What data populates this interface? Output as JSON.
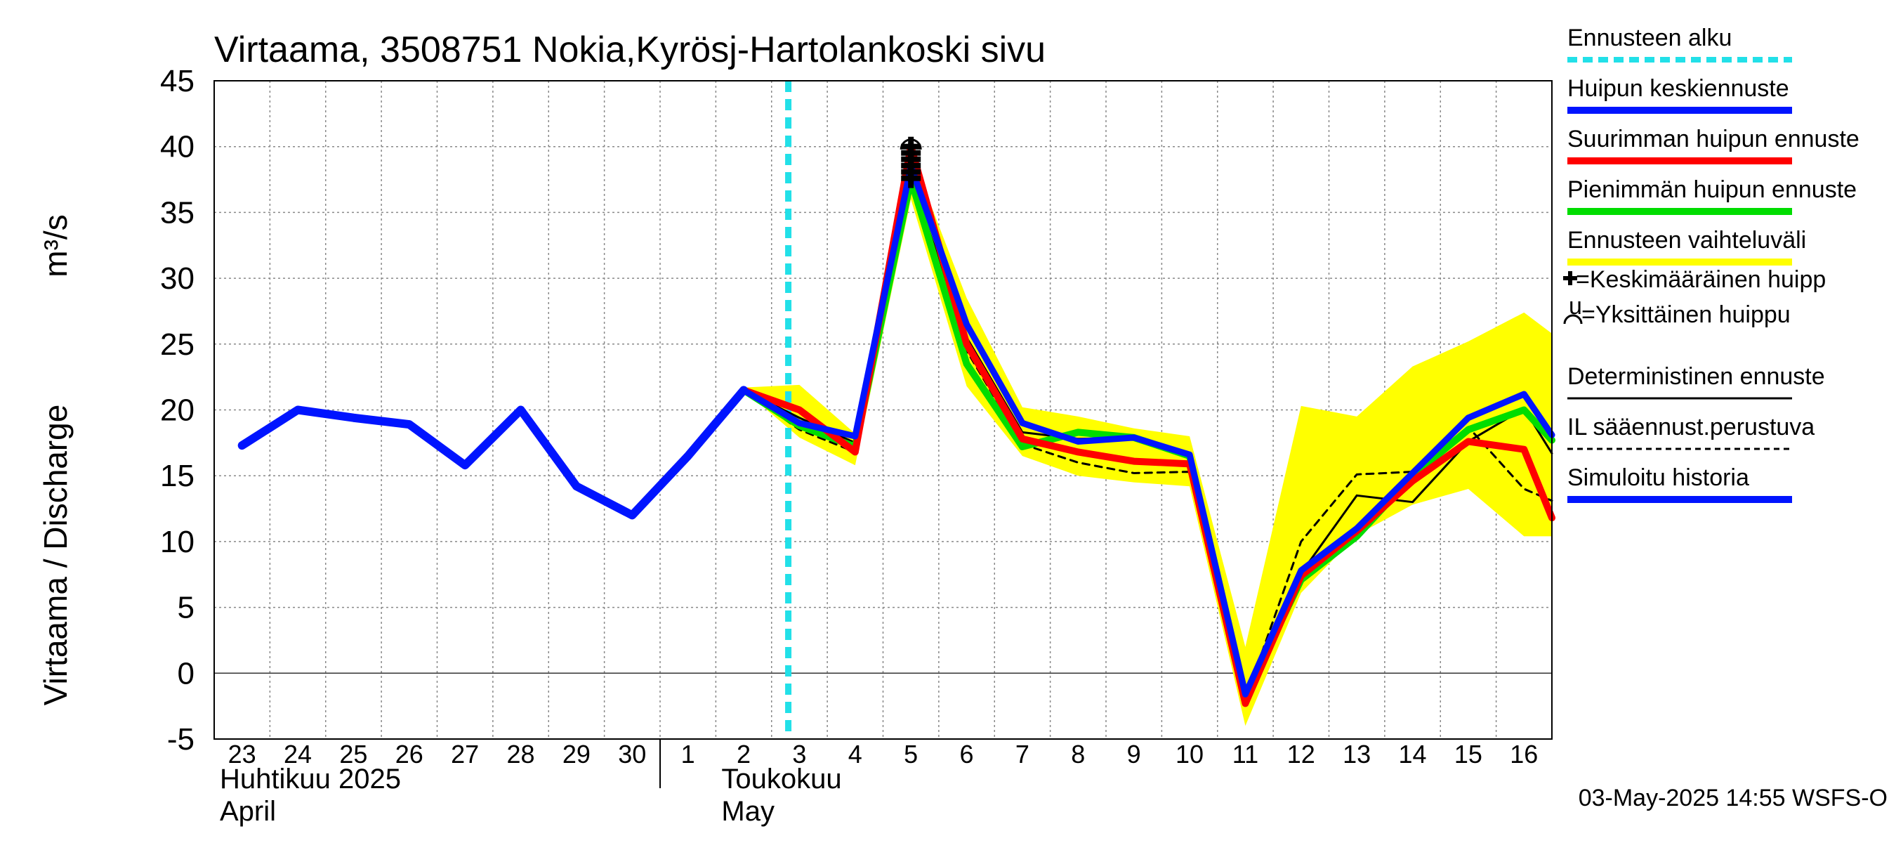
{
  "chart_data": {
    "type": "line",
    "title": "Virtaama, 3508751 Nokia,Kyrösj-Hartolankoski sivu",
    "ylabel": "Virtaama / Discharge",
    "yunit": "m³/s",
    "ylim": [
      -5,
      45
    ],
    "yticks": [
      45,
      40,
      35,
      30,
      25,
      20,
      15,
      10,
      5,
      0,
      -5
    ],
    "xlim": [
      -0.5,
      23.5
    ],
    "grid": true,
    "day_labels": [
      "23",
      "24",
      "25",
      "26",
      "27",
      "28",
      "29",
      "30",
      "1",
      "2",
      "3",
      "4",
      "5",
      "6",
      "7",
      "8",
      "9",
      "10",
      "11",
      "12",
      "13",
      "14",
      "15",
      "16"
    ],
    "month_labels": [
      {
        "fi": "Huhtikuu  2025",
        "en": "April",
        "at_day": 0
      },
      {
        "fi": "Toukokuu",
        "en": "May",
        "at_day": 9
      }
    ],
    "month_separator_day": 7.5,
    "forecast_start_day": 9.8,
    "series": {
      "simulated_history": {
        "x": [
          0,
          1,
          2,
          3,
          4,
          5,
          6,
          7,
          8,
          9
        ],
        "y": [
          17.3,
          20.0,
          19.4,
          18.9,
          15.8,
          20.0,
          14.2,
          12.0,
          16.5,
          21.5
        ]
      },
      "range_upper": {
        "x": [
          9,
          10,
          11,
          12,
          13,
          14,
          15,
          16,
          17,
          18,
          19,
          20,
          21,
          22,
          23,
          23.5
        ],
        "y": [
          21.7,
          21.9,
          18.2,
          39.5,
          28.5,
          20.2,
          19.5,
          18.6,
          18.0,
          2.0,
          20.3,
          19.5,
          23.3,
          25.2,
          27.4,
          25.8
        ]
      },
      "range_lower": {
        "x": [
          9,
          10,
          11,
          12,
          13,
          14,
          15,
          16,
          17,
          18,
          19,
          20,
          21,
          22,
          23,
          23.5
        ],
        "y": [
          21.5,
          17.9,
          15.8,
          36.0,
          21.8,
          16.5,
          15.0,
          14.5,
          14.2,
          -4.0,
          6.1,
          10.5,
          12.8,
          14.0,
          10.4,
          10.4
        ]
      },
      "deterministic": {
        "x": [
          9,
          10,
          11,
          12,
          13,
          14,
          15,
          16,
          17,
          18,
          19,
          20,
          21,
          22,
          23,
          23.5
        ],
        "y": [
          21.5,
          19.4,
          17.5,
          37.5,
          25.5,
          18.3,
          17.8,
          17.9,
          16.6,
          -1.8,
          7.6,
          13.5,
          13.0,
          17.6,
          20.1,
          16.7
        ]
      },
      "il_weather": {
        "x": [
          9,
          10,
          11,
          12,
          13,
          14,
          15,
          16,
          17,
          18,
          19,
          20,
          21,
          22,
          23,
          23.5
        ],
        "y": [
          21.5,
          18.5,
          16.8,
          38.0,
          24.5,
          17.4,
          16.0,
          15.2,
          15.3,
          -2.0,
          10.0,
          15.1,
          15.3,
          18.7,
          14.0,
          13.1
        ]
      },
      "peak_max": {
        "x": [
          9,
          10,
          11,
          12,
          13,
          14,
          15,
          16,
          17,
          18,
          19,
          20,
          21,
          22,
          23,
          23.5
        ],
        "y": [
          21.5,
          20.0,
          16.8,
          40.0,
          25.0,
          17.8,
          16.8,
          16.1,
          15.9,
          -2.3,
          7.4,
          10.8,
          14.6,
          17.6,
          17.0,
          11.8
        ]
      },
      "peak_min": {
        "x": [
          9,
          10,
          11,
          12,
          13,
          14,
          15,
          16,
          17,
          18,
          19,
          20,
          21,
          22,
          23,
          23.5
        ],
        "y": [
          21.5,
          18.8,
          17.2,
          37.5,
          23.5,
          17.2,
          18.3,
          17.9,
          16.5,
          -1.7,
          7.1,
          10.4,
          15.0,
          18.5,
          20.0,
          17.7
        ]
      },
      "peak_mean": {
        "x": [
          9,
          10,
          11,
          12,
          13,
          14,
          15,
          16,
          17,
          18,
          19,
          20,
          21,
          22,
          23,
          23.5
        ],
        "y": [
          21.5,
          19.0,
          18.0,
          38.5,
          26.5,
          19.0,
          17.6,
          17.9,
          16.6,
          -1.6,
          7.8,
          11.0,
          15.2,
          19.4,
          21.2,
          18.1
        ]
      }
    },
    "mean_peak_marker": {
      "x": 12,
      "y": 38.8
    },
    "single_peak_marker": {
      "x": 12,
      "y": 40.0
    }
  },
  "legend": [
    {
      "key": "forecast_start",
      "label": "Ennusteen alku",
      "color": "#22e0e8",
      "style": "dashed-thick"
    },
    {
      "key": "peak_mean",
      "label": "Huipun keskiennuste",
      "color": "#0014ff",
      "style": "thick"
    },
    {
      "key": "peak_max",
      "label": "Suurimman huipun ennuste",
      "color": "#ff0000",
      "style": "thick"
    },
    {
      "key": "peak_min",
      "label": "Pienimmän huipun ennuste",
      "color": "#00dd00",
      "style": "thick"
    },
    {
      "key": "range",
      "label": "Ennusteen vaihteluväli",
      "color": "#ffff00",
      "style": "thick"
    },
    {
      "key": "mean_peak",
      "label": "=Keskimääräinen huipp",
      "label_cont": "u",
      "color": "#000000",
      "style": "marker-plus"
    },
    {
      "key": "single_peak",
      "label": "=Yksittäinen huippu",
      "color": "#000000",
      "style": "marker-arc"
    },
    {
      "key": "deterministic",
      "label": "Deterministinen ennuste",
      "color": "#000000",
      "style": "thin"
    },
    {
      "key": "il_weather",
      "label": "IL sääennust.perustuva",
      "color": "#000000",
      "style": "dashed-thin"
    },
    {
      "key": "simulated_history",
      "label": "Simuloitu historia",
      "color": "#0014ff",
      "style": "thick"
    }
  ],
  "timestamp": "03-May-2025 14:55 WSFS-O"
}
